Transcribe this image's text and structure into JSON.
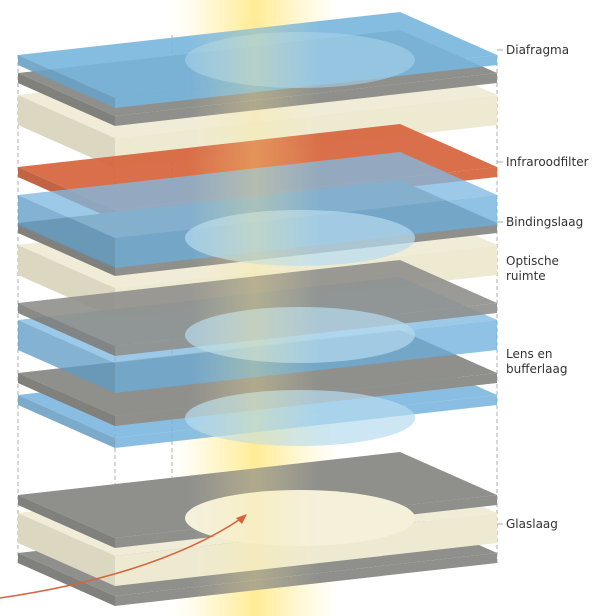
{
  "labels": [
    [
      "Diafragma"
    ],
    [
      "Infraroodfilter"
    ],
    [
      "Bindingslaag"
    ],
    [
      "Optische",
      "ruimte"
    ],
    [
      "Lens en",
      "bufferlaag"
    ],
    [
      "Glaslaag"
    ]
  ]
}
